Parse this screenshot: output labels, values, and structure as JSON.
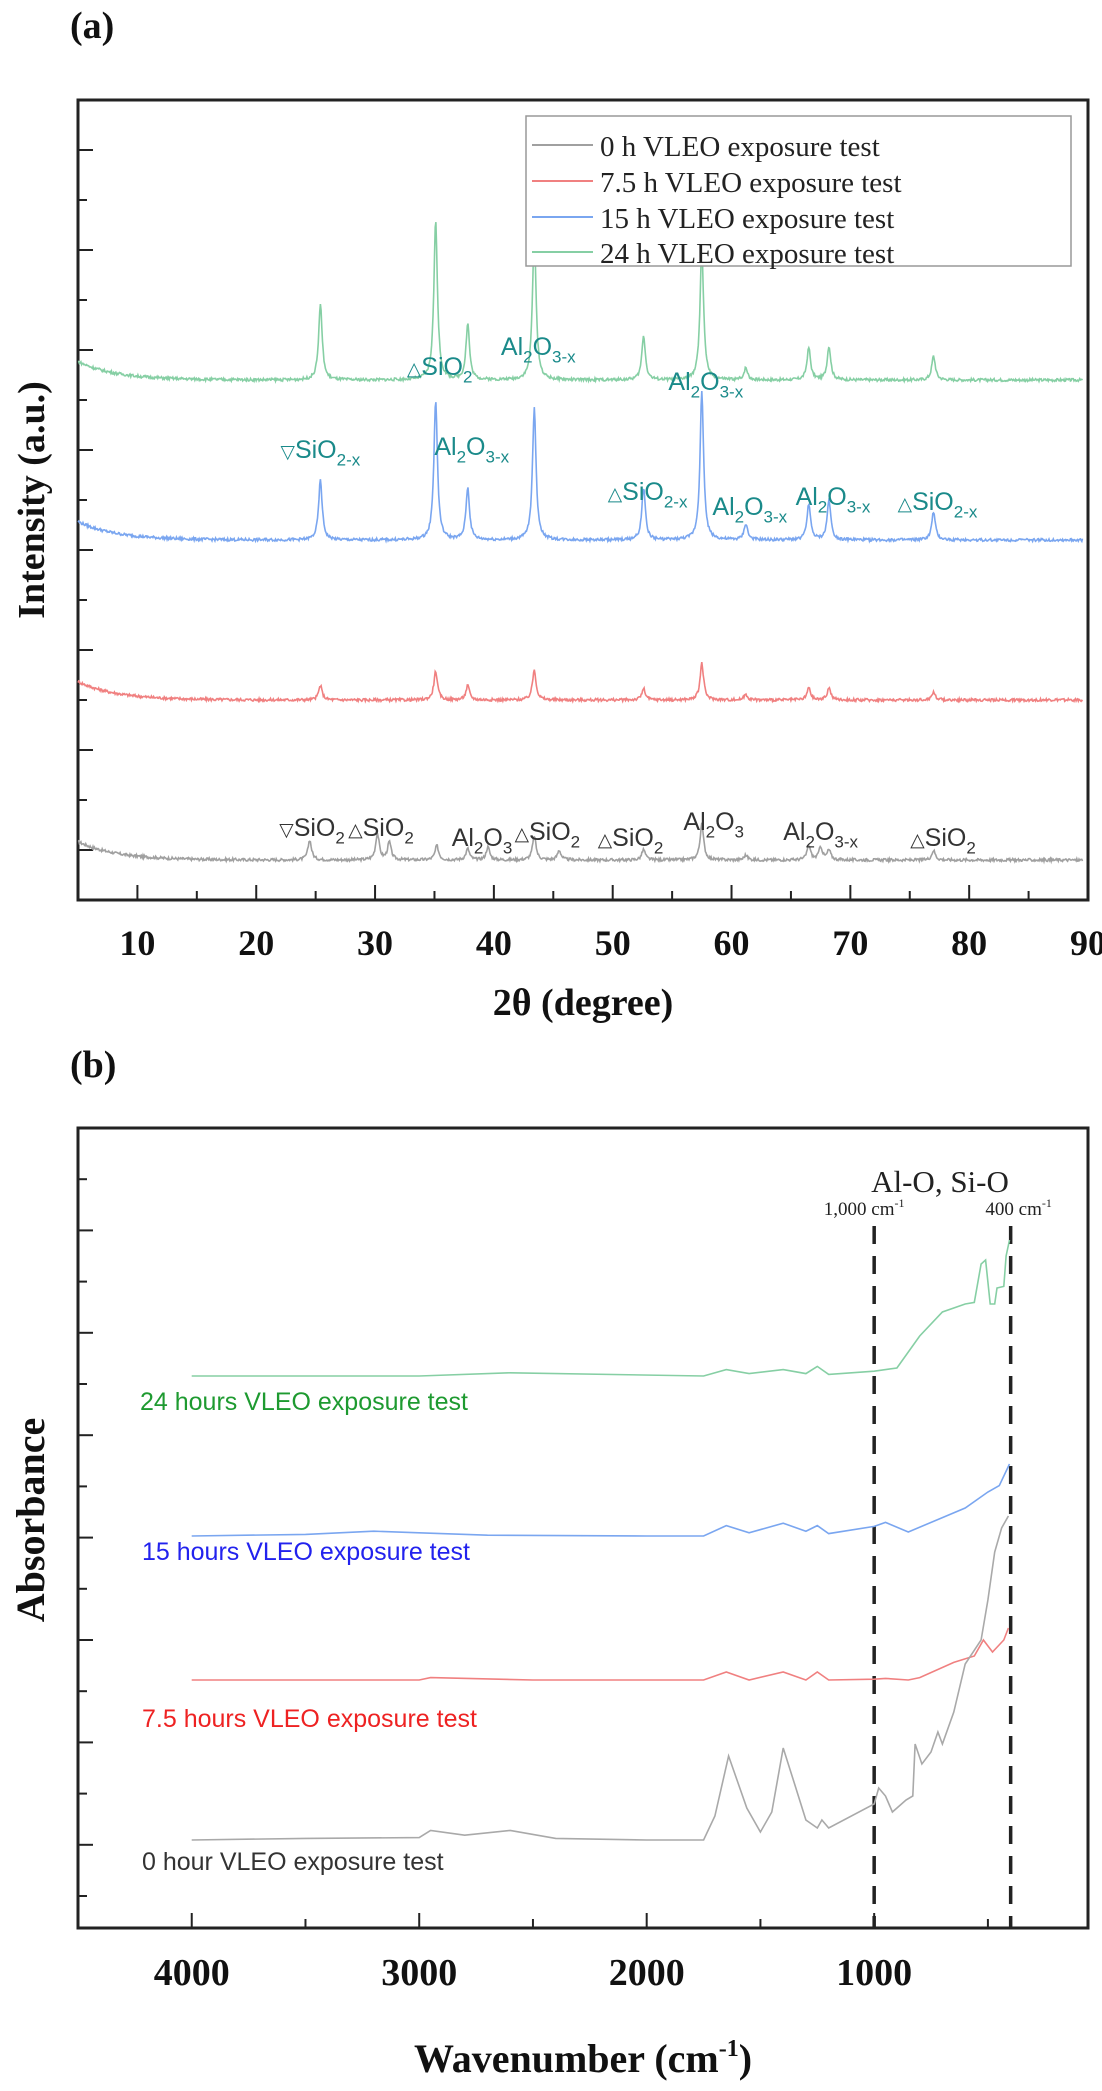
{
  "chart_data": [
    {
      "panel_label": "(a)",
      "type": "line",
      "xlabel": "2θ (degree)",
      "ylabel": "Intensity (a.u.)",
      "xlim": [
        5,
        90
      ],
      "ylim": [
        0,
        100
      ],
      "xticks": [
        "10",
        "20",
        "30",
        "40",
        "50",
        "60",
        "70",
        "80",
        "90"
      ],
      "xtick_values": [
        10,
        20,
        30,
        40,
        50,
        60,
        70,
        80,
        90
      ],
      "grid": false,
      "legend_position": "top-right",
      "legend": [
        {
          "label": "0 h VLEO exposure test",
          "color": "#a0a0a0"
        },
        {
          "label": "7.5 h VLEO exposure test",
          "color": "#f08080"
        },
        {
          "label": "15 h VLEO exposure test",
          "color": "#7aa6f0"
        },
        {
          "label": "24 h VLEO exposure test",
          "color": "#86cfa4"
        }
      ],
      "series": [
        {
          "name": "0 h VLEO exposure test",
          "color": "#a0a0a0",
          "baseline": 5,
          "peaks": [
            [
              24.5,
              2.5
            ],
            [
              30.2,
              3.3
            ],
            [
              31.2,
              2.2
            ],
            [
              35.2,
              1.8
            ],
            [
              37.8,
              1.4
            ],
            [
              39.5,
              1.6
            ],
            [
              43.4,
              3.0
            ],
            [
              45.5,
              1.2
            ],
            [
              52.6,
              1.3
            ],
            [
              57.5,
              4.5
            ],
            [
              61.2,
              0.6
            ],
            [
              66.5,
              1.8
            ],
            [
              67.5,
              1.6
            ],
            [
              68.2,
              1.2
            ],
            [
              77.0,
              1.2
            ]
          ]
        },
        {
          "name": "7.5 h VLEO exposure test",
          "color": "#f08080",
          "baseline": 25,
          "peaks": [
            [
              25.4,
              1.8
            ],
            [
              35.1,
              3.6
            ],
            [
              37.8,
              1.8
            ],
            [
              43.4,
              3.8
            ],
            [
              52.6,
              1.4
            ],
            [
              57.5,
              4.6
            ],
            [
              61.2,
              0.7
            ],
            [
              66.5,
              1.5
            ],
            [
              68.2,
              1.5
            ],
            [
              77.0,
              1.0
            ]
          ]
        },
        {
          "name": "15 h VLEO exposure test",
          "color": "#7aa6f0",
          "baseline": 45,
          "peaks": [
            [
              25.4,
              7.5
            ],
            [
              35.1,
              17.5
            ],
            [
              37.8,
              6.5
            ],
            [
              43.4,
              16.5
            ],
            [
              52.6,
              6.5
            ],
            [
              57.5,
              18.5
            ],
            [
              61.2,
              2.0
            ],
            [
              66.5,
              4.5
            ],
            [
              68.2,
              5.0
            ],
            [
              77.0,
              3.5
            ]
          ]
        },
        {
          "name": "24 h VLEO exposure test",
          "color": "#86cfa4",
          "baseline": 65,
          "peaks": [
            [
              25.4,
              9.5
            ],
            [
              35.1,
              20.0
            ],
            [
              37.8,
              7.0
            ],
            [
              43.4,
              18.5
            ],
            [
              52.6,
              5.5
            ],
            [
              57.5,
              16.5
            ],
            [
              61.2,
              1.5
            ],
            [
              66.5,
              4.0
            ],
            [
              68.2,
              4.2
            ],
            [
              77.0,
              3.0
            ]
          ]
        }
      ],
      "annotations_24h": [
        {
          "symbol": "▽",
          "base": "SiO",
          "sub": "2-x",
          "x": 25.4
        },
        {
          "symbol": "△",
          "base": "SiO",
          "sub": "2",
          "x": 35.1
        },
        {
          "symbol": "",
          "base": "Al",
          "sub1": "2",
          "mid": "O",
          "sub": "3-x",
          "x": 37.8
        },
        {
          "symbol": "",
          "base": "Al",
          "sub1": "2",
          "mid": "O",
          "sub": "3-x",
          "x": 43.4
        },
        {
          "symbol": "△",
          "base": "SiO",
          "sub": "2-x",
          "x": 52.6
        },
        {
          "symbol": "",
          "base": "Al",
          "sub1": "2",
          "mid": "O",
          "sub": "3-x",
          "x": 57.5
        },
        {
          "symbol": "",
          "base": "Al",
          "sub1": "2",
          "mid": "O",
          "sub": "3-x",
          "x": 61.2
        },
        {
          "symbol": "",
          "base": "Al",
          "sub1": "2",
          "mid": "O",
          "sub": "3-x",
          "x": 68.2
        },
        {
          "symbol": "△",
          "base": "SiO",
          "sub": "2-x",
          "x": 77.0
        }
      ],
      "annotations_0h": [
        {
          "symbol": "▽",
          "base": "SiO",
          "sub": "2",
          "x": 24.5
        },
        {
          "symbol": "△",
          "base": "SiO",
          "sub": "2",
          "x": 30.2
        },
        {
          "symbol": "",
          "base": "Al",
          "sub1": "2",
          "mid": "O",
          "sub": "3",
          "x": 39.5
        },
        {
          "symbol": "△",
          "base": "SiO",
          "sub": "2",
          "x": 43.4
        },
        {
          "symbol": "△",
          "base": "SiO",
          "sub": "2",
          "x": 52.6
        },
        {
          "symbol": "",
          "base": "Al",
          "sub1": "2",
          "mid": "O",
          "sub": "3",
          "x": 57.5
        },
        {
          "symbol": "",
          "base": "Al",
          "sub1": "2",
          "mid": "O",
          "sub": "3-x",
          "x": 67.5
        },
        {
          "symbol": "△",
          "base": "SiO",
          "sub": "2",
          "x": 77.0
        }
      ],
      "annotation_colors": {
        "teal": "#1a8a8a",
        "dark": "#333333"
      }
    },
    {
      "panel_label": "(b)",
      "type": "line",
      "xlabel": "Wavenumber (cm",
      "xlabel_sup": "-1",
      "xlabel_end": ")",
      "ylabel": "Absorbance",
      "xlim": [
        4500,
        60
      ],
      "ylim": [
        0,
        100
      ],
      "xticks": [
        "4000",
        "3000",
        "2000",
        "1000"
      ],
      "xtick_values": [
        4000,
        3000,
        2000,
        1000
      ],
      "grid": false,
      "region_label": "Al-O, Si-O",
      "reference_lines": [
        {
          "value": 1000,
          "label": "1,000 cm",
          "sup": "-1"
        },
        {
          "value": 400,
          "label": "400 cm",
          "sup": "-1"
        }
      ],
      "series": [
        {
          "name": "24 hours VLEO exposure test",
          "color": "#86cfa4",
          "label_color": "#1e9a30",
          "points": [
            [
              4000,
              69
            ],
            [
              3000,
              69
            ],
            [
              2600,
              69.4
            ],
            [
              1750,
              69
            ],
            [
              1650,
              69.8
            ],
            [
              1550,
              69.3
            ],
            [
              1400,
              69.8
            ],
            [
              1300,
              69.3
            ],
            [
              1250,
              70.2
            ],
            [
              1200,
              69.2
            ],
            [
              1000,
              69.6
            ],
            [
              900,
              70
            ],
            [
              800,
              74
            ],
            [
              700,
              77
            ],
            [
              600,
              78
            ],
            [
              560,
              78.2
            ],
            [
              530,
              83
            ],
            [
              510,
              83.5
            ],
            [
              490,
              78
            ],
            [
              470,
              78
            ],
            [
              460,
              80
            ],
            [
              430,
              80.2
            ],
            [
              420,
              84
            ],
            [
              405,
              86
            ]
          ]
        },
        {
          "name": "15 hours VLEO exposure test",
          "color": "#7aa6f0",
          "label_color": "#2222ee",
          "points": [
            [
              4000,
              49
            ],
            [
              3500,
              49.2
            ],
            [
              3200,
              49.6
            ],
            [
              3000,
              49.4
            ],
            [
              2700,
              49.1
            ],
            [
              2000,
              49
            ],
            [
              1750,
              49
            ],
            [
              1650,
              50.3
            ],
            [
              1550,
              49.4
            ],
            [
              1400,
              50.6
            ],
            [
              1300,
              49.6
            ],
            [
              1250,
              50.3
            ],
            [
              1200,
              49.3
            ],
            [
              1000,
              50.2
            ],
            [
              950,
              50.7
            ],
            [
              850,
              49.5
            ],
            [
              700,
              51.3
            ],
            [
              600,
              52.5
            ],
            [
              500,
              54.5
            ],
            [
              450,
              55.3
            ],
            [
              405,
              58
            ]
          ]
        },
        {
          "name": "7.5 hours VLEO exposure test",
          "color": "#f08080",
          "label_color": "#ee2222",
          "points": [
            [
              4000,
              31
            ],
            [
              3000,
              31
            ],
            [
              2950,
              31.3
            ],
            [
              2500,
              31
            ],
            [
              1750,
              31
            ],
            [
              1650,
              32
            ],
            [
              1550,
              31
            ],
            [
              1400,
              32
            ],
            [
              1300,
              31
            ],
            [
              1250,
              32
            ],
            [
              1200,
              31
            ],
            [
              1000,
              31.1
            ],
            [
              950,
              31.2
            ],
            [
              850,
              31
            ],
            [
              800,
              31.3
            ],
            [
              650,
              33.2
            ],
            [
              560,
              34
            ],
            [
              520,
              36
            ],
            [
              480,
              34.5
            ],
            [
              430,
              36
            ],
            [
              410,
              37.5
            ]
          ]
        },
        {
          "name": "0 hour VLEO exposure test",
          "color": "#a9a9a9",
          "label_color": "#333333",
          "points": [
            [
              4000,
              11
            ],
            [
              3500,
              11.2
            ],
            [
              3000,
              11.3
            ],
            [
              2950,
              12.2
            ],
            [
              2800,
              11.6
            ],
            [
              2600,
              12.2
            ],
            [
              2400,
              11.2
            ],
            [
              2000,
              11
            ],
            [
              1750,
              11
            ],
            [
              1700,
              14
            ],
            [
              1640,
              21.5
            ],
            [
              1560,
              15
            ],
            [
              1500,
              12
            ],
            [
              1450,
              14.5
            ],
            [
              1400,
              22.5
            ],
            [
              1350,
              18
            ],
            [
              1300,
              13.5
            ],
            [
              1250,
              12.5
            ],
            [
              1230,
              13.5
            ],
            [
              1200,
              12.5
            ],
            [
              1000,
              15.5
            ],
            [
              980,
              17.5
            ],
            [
              950,
              16.5
            ],
            [
              920,
              14.5
            ],
            [
              860,
              16
            ],
            [
              830,
              16.5
            ],
            [
              820,
              23
            ],
            [
              790,
              20.5
            ],
            [
              750,
              22
            ],
            [
              720,
              24.5
            ],
            [
              700,
              23
            ],
            [
              650,
              27
            ],
            [
              600,
              33
            ],
            [
              530,
              36
            ],
            [
              500,
              41
            ],
            [
              470,
              47
            ],
            [
              440,
              50
            ],
            [
              410,
              51.5
            ]
          ]
        }
      ]
    }
  ]
}
